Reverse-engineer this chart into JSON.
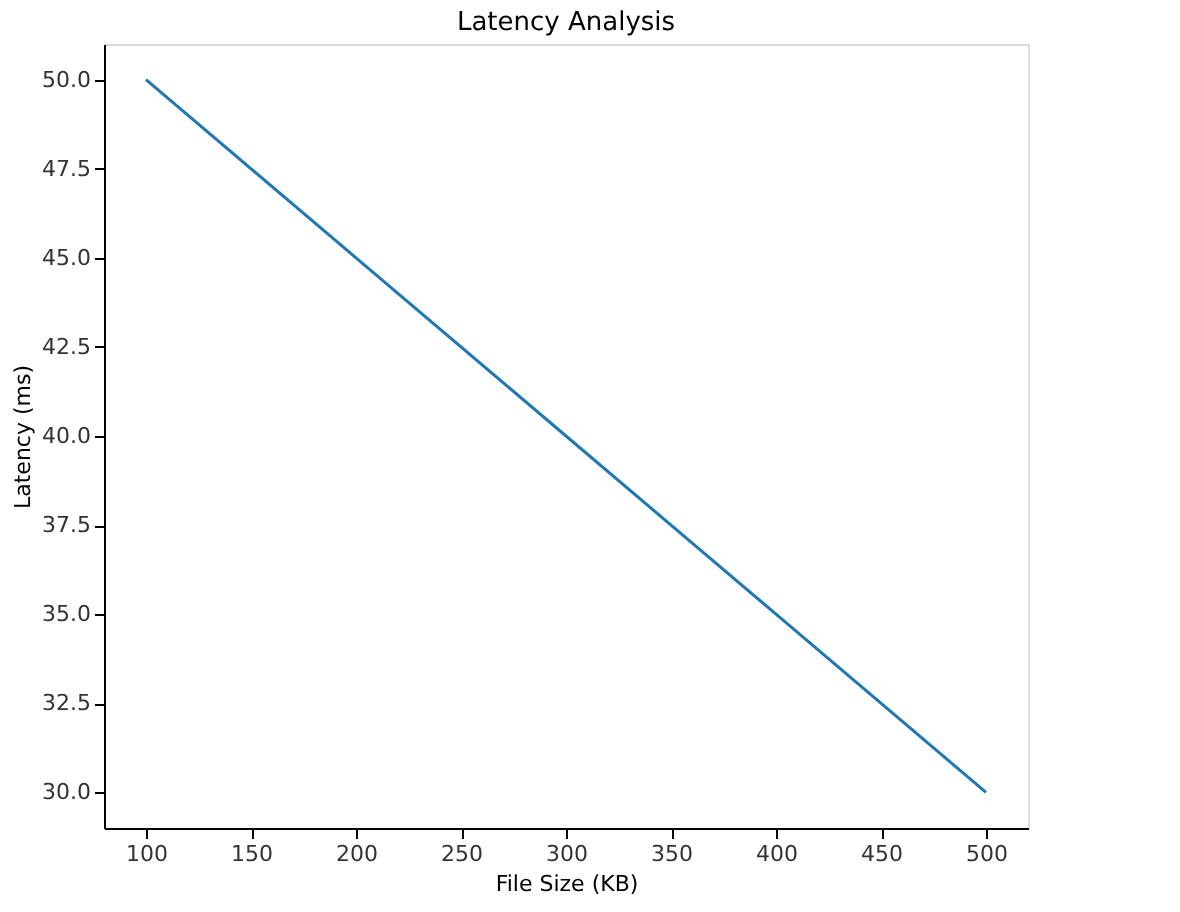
{
  "chart_data": {
    "type": "line",
    "title": "Latency Analysis",
    "xlabel": "File Size (KB)",
    "ylabel": "Latency (ms)",
    "x": [
      100,
      200,
      300,
      400,
      500
    ],
    "series": [
      {
        "color": "#1f77b4",
        "values": [
          50,
          45,
          40,
          35,
          30
        ]
      }
    ],
    "xlim": [
      80,
      520
    ],
    "xticks": [
      100,
      150,
      200,
      250,
      300,
      350,
      400,
      450,
      500
    ],
    "ylim": [
      29,
      51
    ],
    "yticks": [
      {
        "value": 30,
        "label": "30.0"
      },
      {
        "value": 32.5,
        "label": "32.5"
      },
      {
        "value": 35,
        "label": "35.0"
      },
      {
        "value": 37.5,
        "label": "37.5"
      },
      {
        "value": 40,
        "label": "40.0"
      },
      {
        "value": 42.5,
        "label": "42.5"
      },
      {
        "value": 45,
        "label": "45.0"
      },
      {
        "value": 47.5,
        "label": "47.5"
      },
      {
        "value": 50,
        "label": "50.0"
      }
    ],
    "grid": false,
    "marker": "none",
    "line_style": "solid"
  }
}
